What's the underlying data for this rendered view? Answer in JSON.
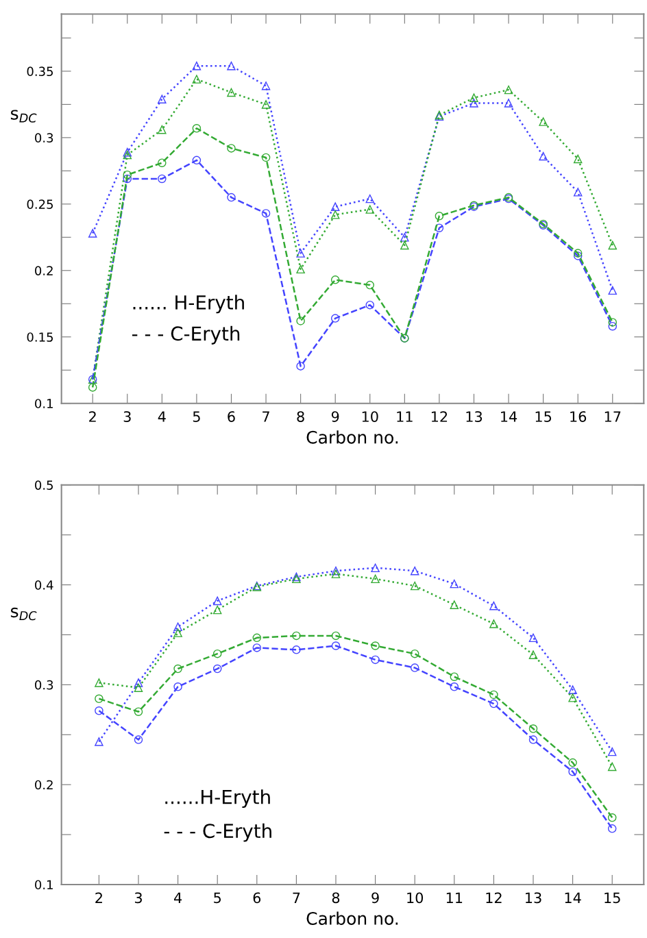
{
  "chart_data": [
    {
      "type": "line",
      "xlabel": "Carbon no.",
      "ylabel": "s$_{DC}$",
      "x": [
        2,
        3,
        4,
        5,
        6,
        7,
        8,
        9,
        10,
        11,
        12,
        13,
        14,
        15,
        16,
        17
      ],
      "xlim": [
        1.1,
        17.9
      ],
      "xticks": [
        2,
        3,
        4,
        5,
        6,
        7,
        8,
        9,
        10,
        11,
        12,
        13,
        14,
        15,
        16,
        17
      ],
      "ylim": [
        0.1,
        0.393
      ],
      "yticks": [
        0.1,
        {
          "value": 0.125,
          "label": null
        },
        0.15,
        {
          "value": 0.175,
          "label": null
        },
        0.2,
        {
          "value": 0.225,
          "label": null
        },
        0.25,
        {
          "value": 0.275,
          "label": null
        },
        0.3,
        {
          "value": 0.325,
          "label": null
        },
        0.35,
        {
          "value": 0.375,
          "label": null
        }
      ],
      "grid": false,
      "legend": false,
      "annotations": [
        "...... H-Eryth",
        "- - - C-Eryth"
      ],
      "series": [
        {
          "color": "#4444ff",
          "line_style": "dotted",
          "marker": "triangle",
          "values": [
            0.228,
            0.289,
            0.329,
            0.354,
            0.354,
            0.339,
            0.213,
            0.248,
            0.254,
            0.225,
            0.316,
            0.326,
            0.326,
            0.286,
            0.259,
            0.185
          ]
        },
        {
          "color": "#33aa33",
          "line_style": "dotted",
          "marker": "triangle",
          "values": [
            0.118,
            0.287,
            0.306,
            0.344,
            0.334,
            0.325,
            0.201,
            0.242,
            0.246,
            0.219,
            0.317,
            0.33,
            0.336,
            0.312,
            0.284,
            0.219
          ]
        },
        {
          "color": "#4444ff",
          "line_style": "dashed",
          "marker": "circle",
          "values": [
            0.118,
            0.269,
            0.269,
            0.283,
            0.255,
            0.243,
            0.128,
            0.164,
            0.174,
            0.149,
            0.232,
            0.248,
            0.254,
            0.234,
            0.211,
            0.158
          ]
        },
        {
          "color": "#33aa33",
          "line_style": "dashed",
          "marker": "circle",
          "values": [
            0.112,
            0.272,
            0.281,
            0.307,
            0.292,
            0.285,
            0.162,
            0.193,
            0.189,
            0.149,
            0.241,
            0.249,
            0.255,
            0.235,
            0.213,
            0.161
          ]
        }
      ]
    },
    {
      "type": "line",
      "xlabel": "Carbon no.",
      "ylabel": "s$_{DC}$",
      "x": [
        2,
        3,
        4,
        5,
        6,
        7,
        8,
        9,
        10,
        11,
        12,
        13,
        14,
        15
      ],
      "xlim": [
        1.05,
        15.8
      ],
      "xticks": [
        2,
        3,
        4,
        5,
        6,
        7,
        8,
        9,
        10,
        11,
        12,
        13,
        14,
        15
      ],
      "ylim": [
        0.1,
        0.5
      ],
      "yticks": [
        0.1,
        {
          "value": 0.15,
          "label": null
        },
        0.2,
        {
          "value": 0.25,
          "label": null
        },
        0.3,
        {
          "value": 0.35,
          "label": null
        },
        0.4,
        {
          "value": 0.45,
          "label": null
        },
        0.5
      ],
      "grid": false,
      "legend": false,
      "annotations": [
        "......H-Eryth",
        "- - - C-Eryth"
      ],
      "series": [
        {
          "color": "#4444ff",
          "line_style": "dotted",
          "marker": "triangle",
          "values": [
            0.243,
            0.302,
            0.358,
            0.384,
            0.399,
            0.408,
            0.414,
            0.417,
            0.414,
            0.401,
            0.379,
            0.347,
            0.295,
            0.233
          ]
        },
        {
          "color": "#33aa33",
          "line_style": "dotted",
          "marker": "triangle",
          "values": [
            0.302,
            0.297,
            0.352,
            0.375,
            0.398,
            0.406,
            0.411,
            0.406,
            0.399,
            0.38,
            0.361,
            0.33,
            0.287,
            0.218
          ]
        },
        {
          "color": "#4444ff",
          "line_style": "dashed",
          "marker": "circle",
          "values": [
            0.274,
            0.245,
            0.298,
            0.316,
            0.337,
            0.335,
            0.339,
            0.325,
            0.317,
            0.298,
            0.281,
            0.245,
            0.213,
            0.156
          ]
        },
        {
          "color": "#33aa33",
          "line_style": "dashed",
          "marker": "circle",
          "values": [
            0.286,
            0.273,
            0.316,
            0.331,
            0.347,
            0.349,
            0.349,
            0.339,
            0.331,
            0.308,
            0.29,
            0.256,
            0.222,
            0.167
          ]
        }
      ]
    }
  ]
}
